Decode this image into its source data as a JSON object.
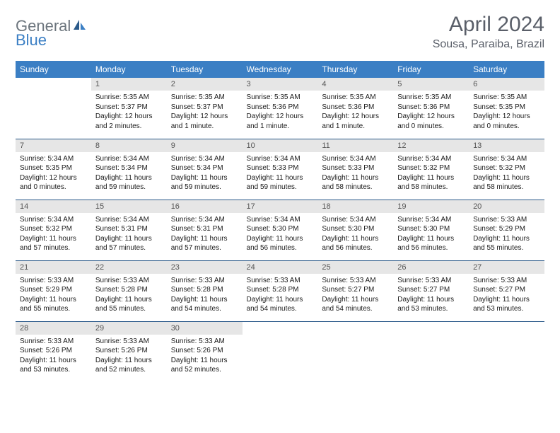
{
  "brand": {
    "part1": "General",
    "part2": "Blue"
  },
  "title": "April 2024",
  "location": "Sousa, Paraiba, Brazil",
  "colors": {
    "header_bg": "#3b7fc4",
    "header_text": "#ffffff",
    "daynum_bg": "#e6e6e6",
    "row_border": "#2b5a8a",
    "title_color": "#5a5f69",
    "logo_gray": "#6c757d",
    "logo_blue": "#3b7fc4"
  },
  "weekdays": [
    "Sunday",
    "Monday",
    "Tuesday",
    "Wednesday",
    "Thursday",
    "Friday",
    "Saturday"
  ],
  "weeks": [
    [
      null,
      {
        "n": "1",
        "sr": "5:35 AM",
        "ss": "5:37 PM",
        "dl": "12 hours and 2 minutes."
      },
      {
        "n": "2",
        "sr": "5:35 AM",
        "ss": "5:37 PM",
        "dl": "12 hours and 1 minute."
      },
      {
        "n": "3",
        "sr": "5:35 AM",
        "ss": "5:36 PM",
        "dl": "12 hours and 1 minute."
      },
      {
        "n": "4",
        "sr": "5:35 AM",
        "ss": "5:36 PM",
        "dl": "12 hours and 1 minute."
      },
      {
        "n": "5",
        "sr": "5:35 AM",
        "ss": "5:36 PM",
        "dl": "12 hours and 0 minutes."
      },
      {
        "n": "6",
        "sr": "5:35 AM",
        "ss": "5:35 PM",
        "dl": "12 hours and 0 minutes."
      }
    ],
    [
      {
        "n": "7",
        "sr": "5:34 AM",
        "ss": "5:35 PM",
        "dl": "12 hours and 0 minutes."
      },
      {
        "n": "8",
        "sr": "5:34 AM",
        "ss": "5:34 PM",
        "dl": "11 hours and 59 minutes."
      },
      {
        "n": "9",
        "sr": "5:34 AM",
        "ss": "5:34 PM",
        "dl": "11 hours and 59 minutes."
      },
      {
        "n": "10",
        "sr": "5:34 AM",
        "ss": "5:33 PM",
        "dl": "11 hours and 59 minutes."
      },
      {
        "n": "11",
        "sr": "5:34 AM",
        "ss": "5:33 PM",
        "dl": "11 hours and 58 minutes."
      },
      {
        "n": "12",
        "sr": "5:34 AM",
        "ss": "5:32 PM",
        "dl": "11 hours and 58 minutes."
      },
      {
        "n": "13",
        "sr": "5:34 AM",
        "ss": "5:32 PM",
        "dl": "11 hours and 58 minutes."
      }
    ],
    [
      {
        "n": "14",
        "sr": "5:34 AM",
        "ss": "5:32 PM",
        "dl": "11 hours and 57 minutes."
      },
      {
        "n": "15",
        "sr": "5:34 AM",
        "ss": "5:31 PM",
        "dl": "11 hours and 57 minutes."
      },
      {
        "n": "16",
        "sr": "5:34 AM",
        "ss": "5:31 PM",
        "dl": "11 hours and 57 minutes."
      },
      {
        "n": "17",
        "sr": "5:34 AM",
        "ss": "5:30 PM",
        "dl": "11 hours and 56 minutes."
      },
      {
        "n": "18",
        "sr": "5:34 AM",
        "ss": "5:30 PM",
        "dl": "11 hours and 56 minutes."
      },
      {
        "n": "19",
        "sr": "5:34 AM",
        "ss": "5:30 PM",
        "dl": "11 hours and 56 minutes."
      },
      {
        "n": "20",
        "sr": "5:33 AM",
        "ss": "5:29 PM",
        "dl": "11 hours and 55 minutes."
      }
    ],
    [
      {
        "n": "21",
        "sr": "5:33 AM",
        "ss": "5:29 PM",
        "dl": "11 hours and 55 minutes."
      },
      {
        "n": "22",
        "sr": "5:33 AM",
        "ss": "5:28 PM",
        "dl": "11 hours and 55 minutes."
      },
      {
        "n": "23",
        "sr": "5:33 AM",
        "ss": "5:28 PM",
        "dl": "11 hours and 54 minutes."
      },
      {
        "n": "24",
        "sr": "5:33 AM",
        "ss": "5:28 PM",
        "dl": "11 hours and 54 minutes."
      },
      {
        "n": "25",
        "sr": "5:33 AM",
        "ss": "5:27 PM",
        "dl": "11 hours and 54 minutes."
      },
      {
        "n": "26",
        "sr": "5:33 AM",
        "ss": "5:27 PM",
        "dl": "11 hours and 53 minutes."
      },
      {
        "n": "27",
        "sr": "5:33 AM",
        "ss": "5:27 PM",
        "dl": "11 hours and 53 minutes."
      }
    ],
    [
      {
        "n": "28",
        "sr": "5:33 AM",
        "ss": "5:26 PM",
        "dl": "11 hours and 53 minutes."
      },
      {
        "n": "29",
        "sr": "5:33 AM",
        "ss": "5:26 PM",
        "dl": "11 hours and 52 minutes."
      },
      {
        "n": "30",
        "sr": "5:33 AM",
        "ss": "5:26 PM",
        "dl": "11 hours and 52 minutes."
      },
      null,
      null,
      null,
      null
    ]
  ],
  "labels": {
    "sunrise": "Sunrise:",
    "sunset": "Sunset:",
    "daylight": "Daylight:"
  }
}
